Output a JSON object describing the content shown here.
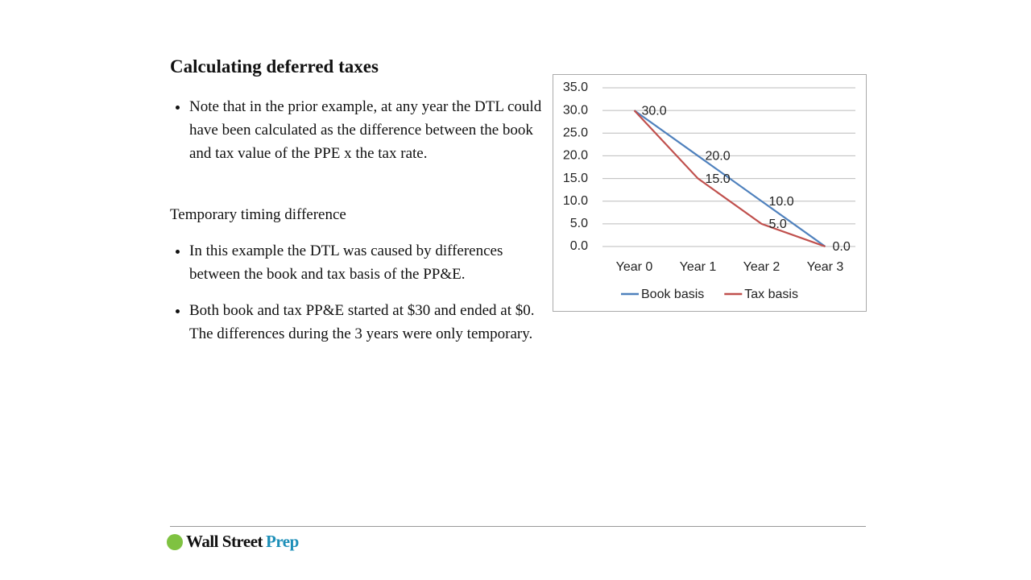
{
  "slide": {
    "title": "Calculating deferred taxes",
    "bullets_1": [
      "Note that in the prior example, at any year the DTL could have been calculated as the difference between the book and tax value of the PPE x the tax rate."
    ],
    "subheading": "Temporary timing difference",
    "bullets_2": [
      "In this example the DTL was caused by differences between the book and tax basis of the PP&E.",
      "Both book and tax PP&E started at $30 and ended at $0. The differences during the 3 years were only temporary."
    ],
    "footer": {
      "brand": "Wall Street",
      "brand_accent": "Prep"
    }
  },
  "chart_data": {
    "type": "line",
    "categories": [
      "Year 0",
      "Year 1",
      "Year 2",
      "Year 3"
    ],
    "series": [
      {
        "name": "Book basis",
        "color": "#4f81bd",
        "values": [
          30,
          20,
          10,
          0
        ],
        "value_labels": [
          "30.0",
          "20.0",
          "10.0",
          "0.0"
        ]
      },
      {
        "name": "Tax basis",
        "color": "#c0504d",
        "values": [
          30,
          15,
          5,
          0
        ],
        "value_labels": [
          null,
          "15.0",
          "5.0",
          null
        ]
      }
    ],
    "ylim": [
      0,
      35
    ],
    "yticks": [
      {
        "value": 0,
        "label": "0.0"
      },
      {
        "value": 5,
        "label": "5.0"
      },
      {
        "value": 10,
        "label": "10.0"
      },
      {
        "value": 15,
        "label": "15.0"
      },
      {
        "value": 20,
        "label": "20.0"
      },
      {
        "value": 25,
        "label": "25.0"
      },
      {
        "value": 30,
        "label": "30.0"
      },
      {
        "value": 35,
        "label": "35.0"
      }
    ],
    "grid": true,
    "legend": "bottom"
  }
}
